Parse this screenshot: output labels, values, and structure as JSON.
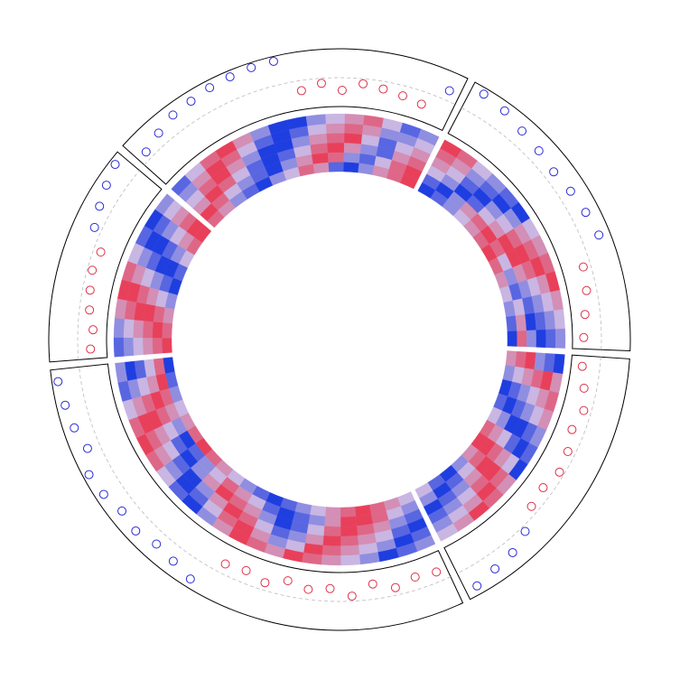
{
  "chart_data": {
    "type": "circos",
    "heatmap_limits": [
      -3,
      3
    ],
    "heatmap_colors": [
      "#1f3ee0",
      "#c9b6e2",
      "#e8405a"
    ],
    "track_ylim": [
      -1,
      1
    ],
    "positive_color": "#2b2bd6",
    "negative_color": "#e0304a",
    "sectors": [
      {
        "heatmap": [
          [
            2,
            1,
            -1,
            -2,
            -3,
            -1,
            0,
            2,
            1,
            -2,
            -3,
            -1,
            1,
            2,
            3
          ],
          [
            3,
            2,
            0,
            -1,
            -2,
            -3,
            -1,
            1,
            3,
            2,
            -1,
            -2,
            0,
            2,
            3
          ],
          [
            1,
            3,
            2,
            0,
            -2,
            -3,
            -2,
            0,
            2,
            3,
            1,
            -1,
            -2,
            1,
            2
          ],
          [
            0,
            2,
            3,
            1,
            -1,
            -3,
            -3,
            -1,
            1,
            2,
            3,
            0,
            -2,
            0,
            1
          ],
          [
            -1,
            1,
            3,
            2,
            0,
            -2,
            -3,
            -2,
            0,
            1,
            2,
            1,
            -1,
            -1,
            0
          ],
          [
            -2,
            0,
            2,
            3,
            1,
            -1,
            -3,
            -3,
            -1,
            0,
            1,
            2,
            0,
            -2,
            -1
          ]
        ],
        "points": [
          0.3,
          0.5,
          0.7,
          0.75,
          0.85,
          0.9,
          0.95,
          0.95,
          -0.4,
          -0.2,
          -0.5,
          -0.2,
          -0.3,
          -0.4,
          -0.5,
          0.4
        ]
      },
      {
        "heatmap": [
          [
            -3,
            -2,
            -1,
            0,
            1,
            2,
            3,
            2,
            1,
            0,
            -1,
            -2,
            -3
          ],
          [
            -2,
            -3,
            -1,
            1,
            2,
            3,
            2,
            0,
            -1,
            -2,
            0,
            1,
            2
          ],
          [
            0,
            -1,
            -3,
            -2,
            0,
            1,
            3,
            3,
            1,
            -1,
            -2,
            -3,
            -1
          ],
          [
            1,
            0,
            -2,
            -3,
            -1,
            0,
            2,
            3,
            2,
            0,
            -1,
            -2,
            -3
          ],
          [
            2,
            1,
            -1,
            -2,
            -3,
            -1,
            1,
            2,
            3,
            1,
            0,
            -1,
            -2
          ],
          [
            3,
            2,
            0,
            -1,
            -2,
            -3,
            0,
            1,
            2,
            3,
            1,
            0,
            -1
          ]
        ],
        "points": [
          0.9,
          0.8,
          0.6,
          0.5,
          0.4,
          0.5,
          0.6,
          0.7,
          -0.3,
          -0.4,
          -0.6,
          -0.7
        ]
      },
      {
        "heatmap": [
          [
            1,
            -1,
            -3,
            -2,
            0,
            2,
            3,
            1,
            -1,
            -3,
            -2,
            0
          ],
          [
            2,
            0,
            -2,
            -3,
            -1,
            1,
            3,
            2,
            0,
            -2,
            -3,
            -1
          ],
          [
            3,
            1,
            -1,
            -2,
            -3,
            0,
            2,
            3,
            1,
            -1,
            -2,
            -3
          ],
          [
            -1,
            2,
            0,
            -1,
            -3,
            -2,
            1,
            3,
            2,
            0,
            -1,
            -2
          ],
          [
            -2,
            3,
            1,
            0,
            -2,
            -3,
            0,
            2,
            3,
            1,
            0,
            -1
          ],
          [
            -3,
            1,
            2,
            1,
            -1,
            -2,
            -3,
            1,
            2,
            3,
            1,
            0
          ]
        ],
        "points": [
          -0.7,
          -0.5,
          -0.3,
          -0.5,
          -0.3,
          -0.2,
          -0.4,
          -0.3,
          0.2,
          0.5,
          0.6,
          0.8
        ]
      },
      {
        "heatmap": [
          [
            0,
            1,
            2,
            3,
            2,
            1,
            0,
            -1,
            -2,
            -3,
            -2,
            -1,
            0,
            1,
            2,
            3,
            2,
            1,
            0,
            -1,
            -2,
            -3
          ],
          [
            -1,
            0,
            2,
            3,
            3,
            1,
            -1,
            -2,
            -3,
            -2,
            0,
            1,
            2,
            0,
            -1,
            -2,
            -3,
            -1,
            1,
            2,
            3,
            2
          ],
          [
            -2,
            -1,
            1,
            2,
            3,
            2,
            0,
            -2,
            -3,
            -1,
            1,
            2,
            3,
            1,
            -1,
            -3,
            -2,
            0,
            2,
            3,
            1,
            0
          ],
          [
            -3,
            -2,
            0,
            1,
            2,
            3,
            1,
            -1,
            -2,
            0,
            2,
            3,
            1,
            -1,
            -3,
            -2,
            0,
            1,
            3,
            2,
            0,
            -2
          ],
          [
            -2,
            -3,
            -1,
            0,
            1,
            2,
            3,
            0,
            -1,
            1,
            3,
            2,
            0,
            -2,
            -3,
            -1,
            1,
            2,
            3,
            1,
            -1,
            -3
          ],
          [
            -1,
            -2,
            -3,
            -1,
            0,
            1,
            2,
            3,
            1,
            2,
            3,
            1,
            -1,
            -3,
            -2,
            0,
            2,
            3,
            2,
            0,
            -2,
            -1
          ]
        ],
        "points": [
          -0.4,
          -0.5,
          -0.3,
          -0.6,
          -0.2,
          -0.5,
          -0.4,
          -0.6,
          -0.3,
          -0.5,
          -0.4,
          0.8,
          0.6,
          0.5,
          0.7,
          0.6,
          0.8,
          0.9,
          0.5,
          0.7,
          0.8,
          0.9
        ]
      },
      {
        "heatmap": [
          [
            3,
            2,
            1,
            -1,
            -3,
            -2,
            0,
            2,
            3
          ],
          [
            2,
            3,
            2,
            0,
            -2,
            -3,
            -1,
            1,
            3
          ],
          [
            1,
            2,
            3,
            1,
            -1,
            -3,
            -2,
            0,
            2
          ],
          [
            0,
            1,
            3,
            2,
            0,
            -2,
            -3,
            -1,
            1
          ],
          [
            -1,
            0,
            2,
            3,
            1,
            -1,
            -3,
            -2,
            0
          ],
          [
            -2,
            -1,
            1,
            3,
            2,
            0,
            -2,
            -3,
            -1
          ]
        ],
        "points": [
          -0.5,
          -0.6,
          -0.4,
          -0.3,
          -0.2,
          -0.3,
          0.3,
          0.5,
          0.7,
          0.9
        ]
      }
    ]
  }
}
